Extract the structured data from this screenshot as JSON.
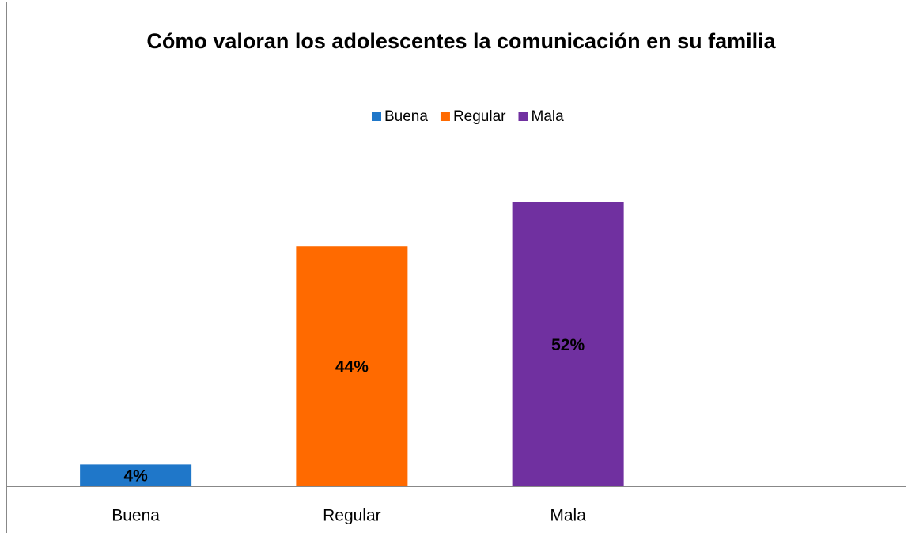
{
  "chart_data": {
    "type": "bar",
    "title": "Cómo valoran los adolescentes la comunicación en su familia",
    "categories": [
      "Buena",
      "Regular",
      "Mala",
      null
    ],
    "series": [
      {
        "name": "Buena",
        "color": "#1f77c9",
        "values": [
          4,
          null,
          null,
          null
        ],
        "value_labels": [
          "4%",
          null,
          null,
          null
        ]
      },
      {
        "name": "Regular",
        "color": "#ff6a00",
        "values": [
          null,
          44,
          null,
          null
        ],
        "value_labels": [
          null,
          "44%",
          null,
          null
        ]
      },
      {
        "name": "Mala",
        "color": "#7030a0",
        "values": [
          null,
          null,
          52,
          null
        ],
        "value_labels": [
          null,
          null,
          "52%",
          null
        ]
      }
    ],
    "legend": "top"
  }
}
